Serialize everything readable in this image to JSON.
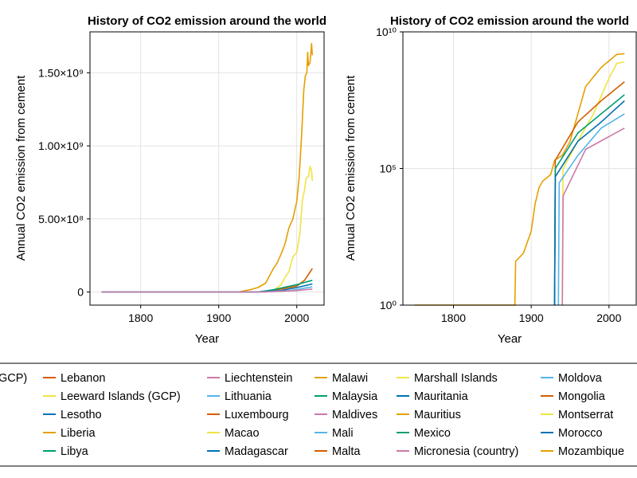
{
  "chart_data": [
    {
      "type": "line",
      "title": "History of CO2 emission around the world",
      "xlabel": "Year",
      "ylabel": "Annual CO2 emission from cement",
      "xlim": [
        1735,
        2035
      ],
      "ylim": [
        -90000000,
        1780000000
      ],
      "yscale": "linear",
      "x_ticks": [
        1800,
        1900,
        2000
      ],
      "x_tick_labels": [
        "1800",
        "1900",
        "2000"
      ],
      "y_ticks": [
        0,
        500000000,
        1000000000,
        1500000000
      ],
      "y_tick_labels": [
        "0",
        "5.00×10⁸",
        "1.00×10⁹",
        "1.50×10⁹"
      ],
      "grid": true,
      "series": [
        {
          "color": "#e69f00",
          "points": [
            [
              1750,
              0
            ],
            [
              1925,
              0
            ],
            [
              1940,
              15000000
            ],
            [
              1950,
              30000000
            ],
            [
              1960,
              60000000
            ],
            [
              1970,
              160000000
            ],
            [
              1975,
              200000000
            ],
            [
              1980,
              260000000
            ],
            [
              1985,
              330000000
            ],
            [
              1990,
              440000000
            ],
            [
              1995,
              500000000
            ],
            [
              2000,
              620000000
            ],
            [
              2003,
              780000000
            ],
            [
              2006,
              1050000000
            ],
            [
              2009,
              1380000000
            ],
            [
              2011,
              1480000000
            ],
            [
              2013,
              1500000000
            ],
            [
              2014,
              1640000000
            ],
            [
              2015,
              1550000000
            ],
            [
              2017,
              1570000000
            ],
            [
              2019,
              1700000000
            ],
            [
              2020,
              1620000000
            ]
          ]
        },
        {
          "color": "#f0e442",
          "points": [
            [
              1750,
              0
            ],
            [
              1960,
              0
            ],
            [
              1970,
              10000000
            ],
            [
              1980,
              50000000
            ],
            [
              1985,
              100000000
            ],
            [
              1990,
              140000000
            ],
            [
              1995,
              240000000
            ],
            [
              2000,
              270000000
            ],
            [
              2004,
              400000000
            ],
            [
              2007,
              620000000
            ],
            [
              2010,
              700000000
            ],
            [
              2012,
              780000000
            ],
            [
              2015,
              790000000
            ],
            [
              2017,
              860000000
            ],
            [
              2019,
              830000000
            ],
            [
              2020,
              760000000
            ]
          ]
        },
        {
          "color": "#d55e00",
          "points": [
            [
              1750,
              0
            ],
            [
              1950,
              0
            ],
            [
              1980,
              20000000
            ],
            [
              2000,
              40000000
            ],
            [
              2010,
              80000000
            ],
            [
              2015,
              120000000
            ],
            [
              2020,
              160000000
            ]
          ]
        },
        {
          "color": "#009e73",
          "points": [
            [
              1750,
              0
            ],
            [
              1950,
              0
            ],
            [
              1970,
              15000000
            ],
            [
              2000,
              50000000
            ],
            [
              2020,
              80000000
            ]
          ]
        },
        {
          "color": "#0072b2",
          "points": [
            [
              1750,
              0
            ],
            [
              1950,
              0
            ],
            [
              1980,
              10000000
            ],
            [
              2000,
              30000000
            ],
            [
              2020,
              55000000
            ]
          ]
        },
        {
          "color": "#56b4e9",
          "points": [
            [
              1750,
              0
            ],
            [
              1950,
              0
            ],
            [
              1990,
              8000000
            ],
            [
              2020,
              35000000
            ]
          ]
        },
        {
          "color": "#cc79a7",
          "points": [
            [
              1750,
              0
            ],
            [
              1960,
              0
            ],
            [
              2000,
              10000000
            ],
            [
              2020,
              20000000
            ]
          ]
        }
      ]
    },
    {
      "type": "line",
      "title": "History of CO2 emission around the world",
      "xlabel": "Year",
      "ylabel": "Annual CO2 emission from cement",
      "xlim": [
        1735,
        2035
      ],
      "ylim": [
        1,
        10000000000
      ],
      "yscale": "log10",
      "y_ticks": [
        1,
        100000,
        10000000000
      ],
      "y_tick_labels": [
        "10⁰",
        "10⁵",
        "10¹⁰"
      ],
      "x_ticks": [
        1800,
        1900,
        2000
      ],
      "x_tick_labels": [
        "1800",
        "1900",
        "2000"
      ],
      "grid": true,
      "series": [
        {
          "color": "#e69f00",
          "points": [
            [
              1750,
              1
            ],
            [
              1879,
              1
            ],
            [
              1880,
              40
            ],
            [
              1890,
              80
            ],
            [
              1900,
              500
            ],
            [
              1905,
              5000
            ],
            [
              1910,
              20000
            ],
            [
              1915,
              35000
            ],
            [
              1925,
              60000
            ],
            [
              1930,
              200000
            ],
            [
              1940,
              300000
            ],
            [
              1950,
              1000000
            ],
            [
              1970,
              100000000
            ],
            [
              1990,
              500000000
            ],
            [
              2010,
              1500000000
            ],
            [
              2020,
              1600000000
            ]
          ]
        },
        {
          "color": "#f0e442",
          "points": [
            [
              1940,
              1
            ],
            [
              1941,
              100000
            ],
            [
              1960,
              1000000
            ],
            [
              1980,
              10000000
            ],
            [
              2000,
              200000000
            ],
            [
              2010,
              700000000
            ],
            [
              2020,
              800000000
            ]
          ]
        },
        {
          "color": "#d55e00",
          "points": [
            [
              1930,
              1
            ],
            [
              1931,
              200000
            ],
            [
              1960,
              5000000
            ],
            [
              1990,
              30000000
            ],
            [
              2020,
              150000000
            ]
          ]
        },
        {
          "color": "#009e73",
          "points": [
            [
              1930,
              1
            ],
            [
              1931,
              100000
            ],
            [
              1960,
              2000000
            ],
            [
              1990,
              10000000
            ],
            [
              2020,
              50000000
            ]
          ]
        },
        {
          "color": "#0072b2",
          "points": [
            [
              1930,
              1
            ],
            [
              1931,
              50000
            ],
            [
              1960,
              1000000
            ],
            [
              1990,
              5000000
            ],
            [
              2020,
              30000000
            ]
          ]
        },
        {
          "color": "#56b4e9",
          "points": [
            [
              1935,
              1
            ],
            [
              1936,
              30000
            ],
            [
              1960,
              300000
            ],
            [
              1990,
              3000000
            ],
            [
              2020,
              10000000
            ]
          ]
        },
        {
          "color": "#cc79a7",
          "points": [
            [
              1940,
              1
            ],
            [
              1941,
              10000
            ],
            [
              1970,
              500000
            ],
            [
              2020,
              3000000
            ]
          ]
        }
      ]
    }
  ],
  "legend": {
    "columns": [
      [
        "GCP)"
      ],
      [
        "Lebanon",
        "Leeward Islands (GCP)",
        "Lesotho",
        "Liberia",
        "Libya"
      ],
      [
        "Liechtenstein",
        "Lithuania",
        "Luxembourg",
        "Macao",
        "Madagascar"
      ],
      [
        "Malawi",
        "Malaysia",
        "Maldives",
        "Mali",
        "Malta"
      ],
      [
        "Marshall Islands",
        "Mauritania",
        "Mauritius",
        "Mexico",
        "Micronesia (country)"
      ],
      [
        "Moldova",
        "Mongolia",
        "Montserrat",
        "Morocco",
        "Mozambique"
      ]
    ],
    "colors": [
      [
        "#0072b2"
      ],
      [
        "#d55e00",
        "#f0e442",
        "#0072b2",
        "#e69f00",
        "#009e73"
      ],
      [
        "#cc79a7",
        "#56b4e9",
        "#d55e00",
        "#f0e442",
        "#0072b2"
      ],
      [
        "#e69f00",
        "#009e73",
        "#cc79a7",
        "#56b4e9",
        "#d55e00"
      ],
      [
        "#f0e442",
        "#0072b2",
        "#e69f00",
        "#009e73",
        "#cc79a7"
      ],
      [
        "#56b4e9",
        "#d55e00",
        "#f0e442",
        "#0072b2",
        "#e69f00"
      ]
    ]
  }
}
